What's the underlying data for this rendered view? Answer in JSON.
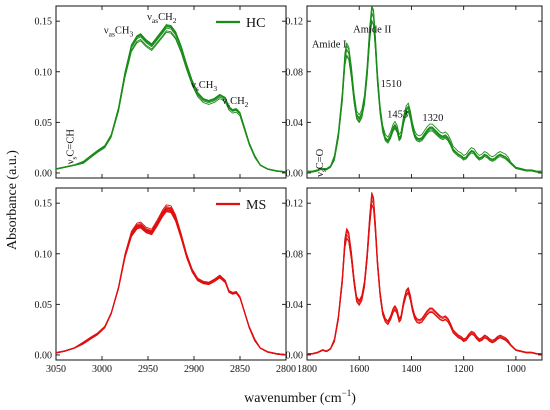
{
  "figure": {
    "ylabel": "Absorbance (a.u.)",
    "xlabel_main": "wavenumber (cm",
    "xlabel_sup": "−1",
    "xlabel_end": ")"
  },
  "colors": {
    "HC": "#1a8c1a",
    "MS": "#e01010"
  },
  "chart_data": [
    {
      "id": "hc-left",
      "type": "line",
      "legend": "HC",
      "xlim": [
        3050,
        2800
      ],
      "ylim": [
        -0.005,
        0.165
      ],
      "xticks": [
        3050,
        3000,
        2950,
        2900,
        2850,
        2800
      ],
      "yticks": [
        0.0,
        0.05,
        0.1,
        0.15
      ],
      "ytick_labels": [
        "0.00",
        "0.05",
        "0.10",
        "0.15"
      ],
      "series_count": 8,
      "x": [
        3050,
        3040,
        3030,
        3020,
        3012,
        3005,
        2997,
        2990,
        2982,
        2975,
        2968,
        2962,
        2958,
        2952,
        2946,
        2940,
        2934,
        2930,
        2925,
        2920,
        2914,
        2908,
        2902,
        2896,
        2890,
        2884,
        2878,
        2872,
        2866,
        2862,
        2858,
        2854,
        2850,
        2846,
        2840,
        2834,
        2828,
        2820,
        2810,
        2800
      ],
      "y": [
        0.004,
        0.006,
        0.008,
        0.011,
        0.017,
        0.022,
        0.027,
        0.038,
        0.065,
        0.1,
        0.127,
        0.136,
        0.138,
        0.132,
        0.128,
        0.135,
        0.142,
        0.147,
        0.146,
        0.14,
        0.126,
        0.108,
        0.092,
        0.08,
        0.074,
        0.072,
        0.074,
        0.078,
        0.075,
        0.066,
        0.063,
        0.064,
        0.06,
        0.048,
        0.03,
        0.017,
        0.008,
        0.004,
        0.002,
        0.001
      ],
      "annotations": [
        {
          "main": "ν",
          "sub": "as",
          "rest": "CH",
          "sub2": "3",
          "at": [
            2982,
            0.138
          ]
        },
        {
          "main": "ν",
          "sub": "as",
          "rest": "CH",
          "sub2": "2",
          "at": [
            2935,
            0.151
          ]
        },
        {
          "main": "ν",
          "sub": "s",
          "rest": "CH",
          "sub2": "3",
          "at": [
            2889,
            0.084
          ]
        },
        {
          "main": "ν",
          "sub": "s",
          "rest": "CH",
          "sub2": "2",
          "at": [
            2855,
            0.068
          ]
        },
        {
          "main": "ν",
          "sub": "s",
          "rest": "C=CH",
          "sub2": "",
          "at": [
            3031,
            0.026
          ],
          "rotate": true
        }
      ]
    },
    {
      "id": "hc-right",
      "type": "line",
      "xlim": [
        1800,
        900
      ],
      "ylim": [
        -0.004,
        0.132
      ],
      "xticks": [
        1800,
        1600,
        1400,
        1200,
        1000
      ],
      "yticks": [
        0.0,
        0.04,
        0.08,
        0.12
      ],
      "ytick_labels": [
        "0.00",
        "0.04",
        "0.08",
        "0.12"
      ],
      "series_count": 6,
      "x": [
        1800,
        1780,
        1760,
        1750,
        1740,
        1725,
        1710,
        1695,
        1680,
        1665,
        1655,
        1648,
        1640,
        1630,
        1620,
        1610,
        1600,
        1590,
        1580,
        1570,
        1560,
        1552,
        1545,
        1538,
        1530,
        1520,
        1510,
        1500,
        1490,
        1480,
        1470,
        1463,
        1455,
        1447,
        1440,
        1430,
        1420,
        1412,
        1404,
        1396,
        1388,
        1380,
        1370,
        1360,
        1350,
        1340,
        1330,
        1320,
        1310,
        1300,
        1290,
        1280,
        1270,
        1260,
        1250,
        1240,
        1230,
        1220,
        1210,
        1200,
        1190,
        1180,
        1170,
        1160,
        1150,
        1140,
        1130,
        1120,
        1110,
        1100,
        1090,
        1080,
        1070,
        1060,
        1050,
        1040,
        1030,
        1020,
        1010,
        1000,
        980,
        960,
        940,
        920,
        900
      ],
      "y": [
        0.001,
        0.001,
        0.002,
        0.003,
        0.003,
        0.003,
        0.005,
        0.012,
        0.03,
        0.06,
        0.09,
        0.098,
        0.095,
        0.08,
        0.06,
        0.046,
        0.043,
        0.047,
        0.058,
        0.08,
        0.11,
        0.127,
        0.123,
        0.103,
        0.075,
        0.05,
        0.035,
        0.028,
        0.026,
        0.03,
        0.036,
        0.038,
        0.035,
        0.028,
        0.03,
        0.042,
        0.05,
        0.052,
        0.046,
        0.037,
        0.031,
        0.028,
        0.027,
        0.028,
        0.031,
        0.034,
        0.036,
        0.036,
        0.034,
        0.032,
        0.03,
        0.029,
        0.03,
        0.028,
        0.024,
        0.019,
        0.017,
        0.015,
        0.014,
        0.012,
        0.013,
        0.016,
        0.018,
        0.017,
        0.014,
        0.012,
        0.013,
        0.015,
        0.014,
        0.012,
        0.011,
        0.012,
        0.014,
        0.015,
        0.014,
        0.013,
        0.011,
        0.008,
        0.006,
        0.004,
        0.003,
        0.002,
        0.002,
        0.001,
        0.001
      ],
      "annotations": [
        {
          "text": "Amide I",
          "at": [
            1715,
            0.099
          ]
        },
        {
          "text": "Amide II",
          "at": [
            1550,
            0.111
          ]
        },
        {
          "text": "1510",
          "at": [
            1478,
            0.068
          ]
        },
        {
          "text": "1453",
          "at": [
            1453,
            0.044
          ]
        },
        {
          "text": "1320",
          "at": [
            1318,
            0.041
          ]
        },
        {
          "main": "ν",
          "sub": "s",
          "rest": "C=O",
          "sub2": "",
          "at": [
            1738,
            0.008
          ],
          "rotate": true
        }
      ]
    },
    {
      "id": "ms-left",
      "type": "line",
      "legend": "MS",
      "xlim": [
        3050,
        2800
      ],
      "ylim": [
        -0.005,
        0.165
      ],
      "xticks": [
        3050,
        3000,
        2950,
        2900,
        2850,
        2800
      ],
      "xtick_labels": [
        "3050",
        "3000",
        "2950",
        "2900",
        "2850",
        "2800"
      ],
      "yticks": [
        0.0,
        0.05,
        0.1,
        0.15
      ],
      "ytick_labels": [
        "0.00",
        "0.05",
        "0.10",
        "0.15"
      ],
      "series_count": 10,
      "x": [
        3050,
        3040,
        3030,
        3020,
        3012,
        3005,
        2997,
        2990,
        2982,
        2975,
        2968,
        2962,
        2958,
        2952,
        2946,
        2940,
        2934,
        2930,
        2925,
        2920,
        2914,
        2908,
        2902,
        2896,
        2890,
        2884,
        2878,
        2872,
        2866,
        2862,
        2858,
        2854,
        2850,
        2846,
        2840,
        2834,
        2828,
        2820,
        2810,
        2800
      ],
      "y": [
        0.002,
        0.004,
        0.007,
        0.012,
        0.017,
        0.021,
        0.028,
        0.042,
        0.068,
        0.1,
        0.122,
        0.13,
        0.131,
        0.126,
        0.124,
        0.133,
        0.143,
        0.148,
        0.147,
        0.138,
        0.12,
        0.1,
        0.085,
        0.076,
        0.073,
        0.072,
        0.075,
        0.079,
        0.074,
        0.064,
        0.062,
        0.063,
        0.058,
        0.046,
        0.028,
        0.015,
        0.007,
        0.003,
        0.001,
        0.0
      ]
    },
    {
      "id": "ms-right",
      "type": "line",
      "xlim": [
        1800,
        900
      ],
      "ylim": [
        -0.004,
        0.132
      ],
      "xticks": [
        1800,
        1600,
        1400,
        1200,
        1000
      ],
      "xtick_labels": [
        "1800",
        "1600",
        "1400",
        "1200",
        "1000"
      ],
      "yticks": [
        0.0,
        0.04,
        0.08,
        0.12
      ],
      "ytick_labels": [
        "0.00",
        "0.04",
        "0.08",
        "0.12"
      ],
      "series_count": 6,
      "x": [
        1800,
        1780,
        1760,
        1750,
        1740,
        1725,
        1710,
        1695,
        1680,
        1665,
        1655,
        1648,
        1640,
        1630,
        1620,
        1610,
        1600,
        1590,
        1580,
        1570,
        1560,
        1552,
        1545,
        1538,
        1530,
        1520,
        1510,
        1500,
        1490,
        1480,
        1470,
        1463,
        1455,
        1447,
        1440,
        1430,
        1420,
        1412,
        1404,
        1396,
        1388,
        1380,
        1370,
        1360,
        1350,
        1340,
        1330,
        1320,
        1310,
        1300,
        1290,
        1280,
        1270,
        1260,
        1250,
        1240,
        1230,
        1220,
        1210,
        1200,
        1190,
        1180,
        1170,
        1160,
        1150,
        1140,
        1130,
        1120,
        1110,
        1100,
        1090,
        1080,
        1070,
        1060,
        1050,
        1040,
        1030,
        1020,
        1010,
        1000,
        980,
        960,
        940,
        920,
        900
      ],
      "y": [
        0.001,
        0.001,
        0.002,
        0.003,
        0.004,
        0.003,
        0.005,
        0.012,
        0.03,
        0.06,
        0.09,
        0.098,
        0.095,
        0.08,
        0.06,
        0.045,
        0.042,
        0.046,
        0.057,
        0.079,
        0.108,
        0.126,
        0.122,
        0.102,
        0.074,
        0.049,
        0.034,
        0.028,
        0.026,
        0.03,
        0.036,
        0.038,
        0.035,
        0.028,
        0.03,
        0.042,
        0.05,
        0.052,
        0.046,
        0.037,
        0.031,
        0.028,
        0.027,
        0.028,
        0.031,
        0.034,
        0.036,
        0.036,
        0.034,
        0.032,
        0.03,
        0.029,
        0.03,
        0.028,
        0.024,
        0.019,
        0.017,
        0.015,
        0.014,
        0.012,
        0.013,
        0.016,
        0.018,
        0.017,
        0.014,
        0.012,
        0.013,
        0.015,
        0.014,
        0.012,
        0.011,
        0.012,
        0.014,
        0.015,
        0.014,
        0.013,
        0.011,
        0.008,
        0.006,
        0.004,
        0.003,
        0.002,
        0.002,
        0.001,
        0.001
      ]
    }
  ]
}
